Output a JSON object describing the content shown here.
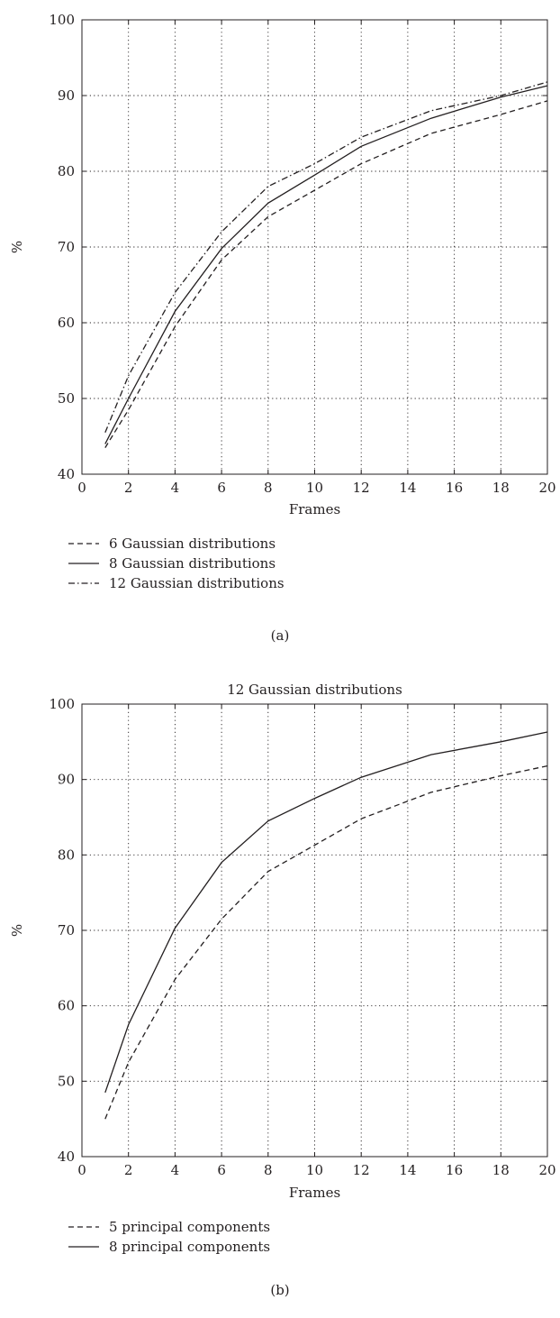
{
  "chart_data": [
    {
      "id": "a",
      "type": "line",
      "title": "",
      "xlabel": "Frames",
      "ylabel": "%",
      "xlim": [
        0,
        20
      ],
      "ylim": [
        40,
        100
      ],
      "xticks": [
        0,
        2,
        4,
        6,
        8,
        10,
        12,
        14,
        16,
        18,
        20
      ],
      "yticks": [
        40,
        50,
        60,
        70,
        80,
        90,
        100
      ],
      "grid": true,
      "legend_position": "below",
      "caption": "(a)",
      "x": [
        1,
        2,
        4,
        6,
        8,
        10,
        12,
        15,
        18,
        20
      ],
      "series": [
        {
          "name": "6 Gaussian distributions",
          "style": "dashed",
          "values": [
            43.5,
            48.5,
            59.5,
            68.3,
            74.0,
            77.5,
            81.0,
            85.0,
            87.5,
            89.3
          ]
        },
        {
          "name": "8 Gaussian distributions",
          "style": "solid",
          "values": [
            44.0,
            50.0,
            61.5,
            69.8,
            75.8,
            79.5,
            83.3,
            87.0,
            89.8,
            91.3
          ]
        },
        {
          "name": "12 Gaussian distributions",
          "style": "dashdot",
          "values": [
            45.5,
            53.0,
            64.0,
            72.0,
            78.0,
            81.0,
            84.5,
            88.0,
            90.0,
            91.8
          ]
        }
      ]
    },
    {
      "id": "b",
      "type": "line",
      "title": "12 Gaussian distributions",
      "xlabel": "Frames",
      "ylabel": "%",
      "xlim": [
        0,
        20
      ],
      "ylim": [
        40,
        100
      ],
      "xticks": [
        0,
        2,
        4,
        6,
        8,
        10,
        12,
        14,
        16,
        18,
        20
      ],
      "yticks": [
        40,
        50,
        60,
        70,
        80,
        90,
        100
      ],
      "grid": true,
      "legend_position": "below",
      "caption": "(b)",
      "x": [
        1,
        2,
        4,
        6,
        8,
        10,
        12,
        15,
        18,
        20
      ],
      "series": [
        {
          "name": "5 principal components",
          "style": "dashed",
          "values": [
            45.0,
            52.5,
            63.5,
            71.5,
            77.8,
            81.3,
            84.8,
            88.3,
            90.5,
            91.8
          ]
        },
        {
          "name": "8 principal components",
          "style": "solid",
          "values": [
            48.5,
            57.5,
            70.3,
            79.0,
            84.5,
            87.5,
            90.3,
            93.3,
            95.0,
            96.3
          ]
        }
      ]
    }
  ]
}
